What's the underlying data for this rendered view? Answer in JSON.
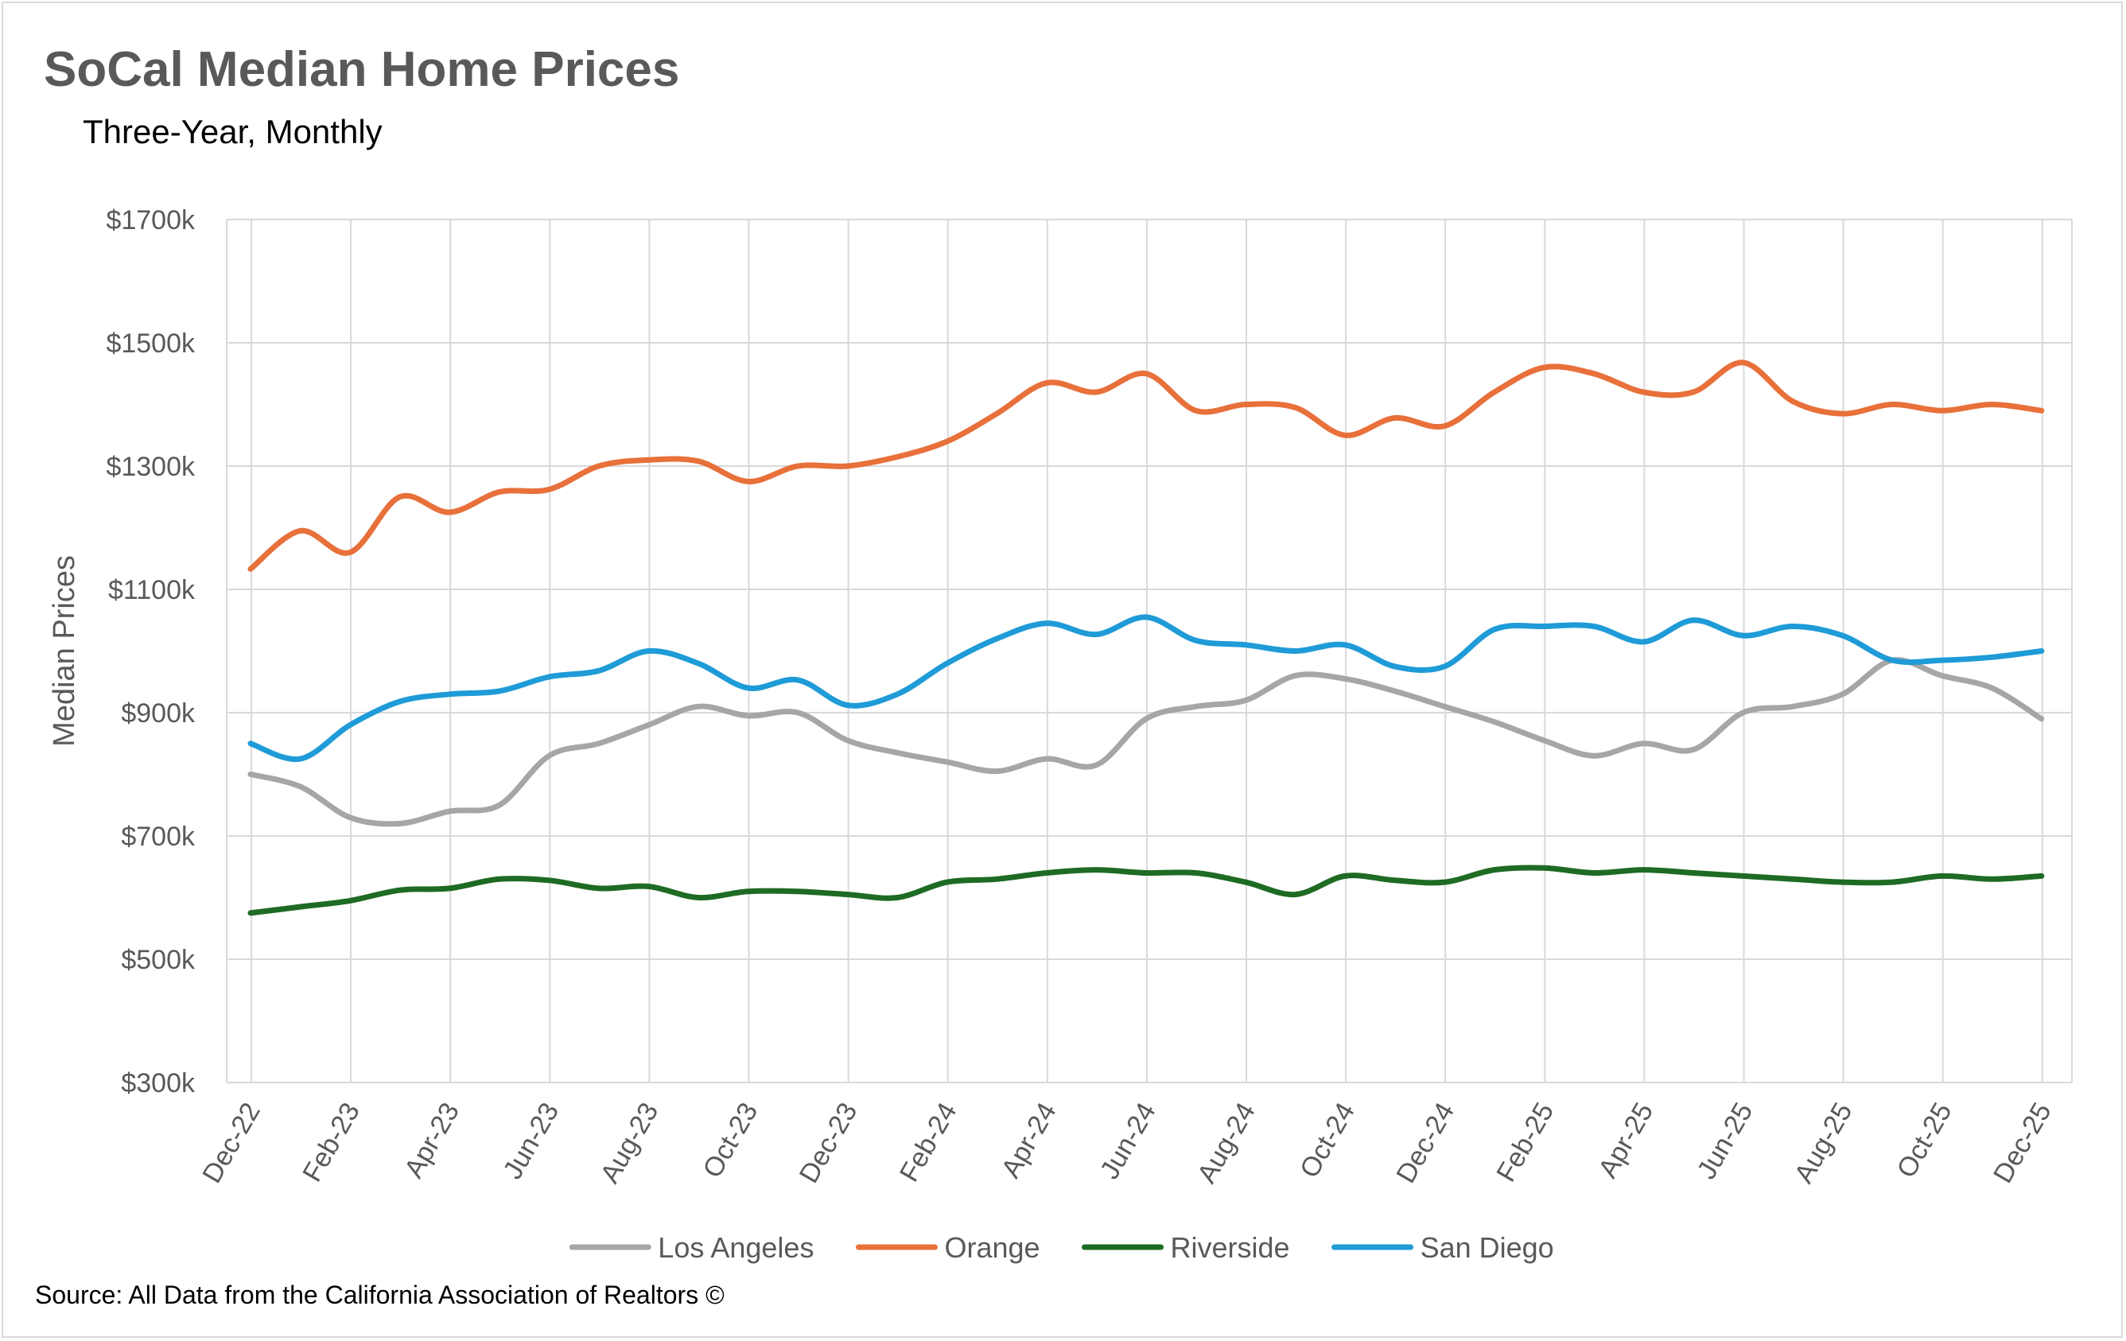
{
  "chart_data": {
    "type": "line",
    "title": "SoCal Median Home Prices",
    "subtitle": "Three-Year, Monthly",
    "ylabel": "Median Prices",
    "xlabel": "",
    "source": "Source: All Data from the California Association of Realtors ©",
    "ylim": [
      300,
      1700
    ],
    "y_ticks": [
      300,
      500,
      700,
      900,
      1100,
      1300,
      1500,
      1700
    ],
    "y_tick_labels": [
      "$300k",
      "$500k",
      "$700k",
      "$900k",
      "$1100k",
      "$1300k",
      "$1500k",
      "$1700k"
    ],
    "x": [
      "Dec-22",
      "Jan-23",
      "Feb-23",
      "Mar-23",
      "Apr-23",
      "May-23",
      "Jun-23",
      "Jul-23",
      "Aug-23",
      "Sep-23",
      "Oct-23",
      "Nov-23",
      "Dec-23",
      "Jan-24",
      "Feb-24",
      "Mar-24",
      "Apr-24",
      "May-24",
      "Jun-24",
      "Jul-24",
      "Aug-24",
      "Sep-24",
      "Oct-24",
      "Nov-24",
      "Dec-24",
      "Jan-25",
      "Feb-25",
      "Mar-25",
      "Apr-25",
      "May-25",
      "Jun-25",
      "Jul-25",
      "Aug-25",
      "Sep-25",
      "Oct-25",
      "Nov-25",
      "Dec-25"
    ],
    "x_tick_labels": [
      "Dec-22",
      "Feb-23",
      "Apr-23",
      "Jun-23",
      "Aug-23",
      "Oct-23",
      "Dec-23",
      "Feb-24",
      "Apr-24",
      "Jun-24",
      "Aug-24",
      "Oct-24",
      "Dec-24",
      "Feb-25",
      "Apr-25",
      "Jun-25",
      "Aug-25",
      "Oct-25",
      "Dec-25"
    ],
    "grid": true,
    "legend_position": "bottom",
    "series": [
      {
        "name": "Los Angeles",
        "color": "#a6a6a6",
        "values": [
          800,
          780,
          730,
          720,
          740,
          750,
          830,
          850,
          880,
          910,
          895,
          900,
          855,
          835,
          820,
          805,
          825,
          815,
          890,
          910,
          920,
          960,
          955,
          935,
          910,
          885,
          855,
          830,
          850,
          840,
          900,
          910,
          930,
          985,
          960,
          940,
          890
        ]
      },
      {
        "name": "Orange",
        "color": "#e8703a",
        "values": [
          1133,
          1195,
          1160,
          1250,
          1225,
          1258,
          1262,
          1300,
          1310,
          1308,
          1275,
          1300,
          1300,
          1315,
          1340,
          1385,
          1435,
          1420,
          1450,
          1390,
          1400,
          1395,
          1350,
          1378,
          1365,
          1420,
          1460,
          1450,
          1420,
          1420,
          1468,
          1405,
          1385,
          1400,
          1390,
          1400,
          1390
        ]
      },
      {
        "name": "Riverside",
        "color": "#1e6b23",
        "values": [
          575,
          585,
          595,
          612,
          615,
          630,
          628,
          615,
          618,
          600,
          610,
          610,
          605,
          600,
          625,
          630,
          640,
          645,
          640,
          640,
          625,
          605,
          635,
          628,
          625,
          645,
          648,
          640,
          645,
          640,
          635,
          630,
          625,
          625,
          635,
          630,
          635
        ]
      },
      {
        "name": "San Diego",
        "color": "#1f9bd7",
        "values": [
          850,
          825,
          880,
          918,
          930,
          935,
          958,
          968,
          1000,
          980,
          940,
          953,
          912,
          930,
          980,
          1020,
          1045,
          1027,
          1055,
          1017,
          1010,
          1000,
          1010,
          975,
          975,
          1035,
          1040,
          1040,
          1015,
          1050,
          1025,
          1040,
          1025,
          985,
          985,
          990,
          1000
        ]
      }
    ]
  }
}
